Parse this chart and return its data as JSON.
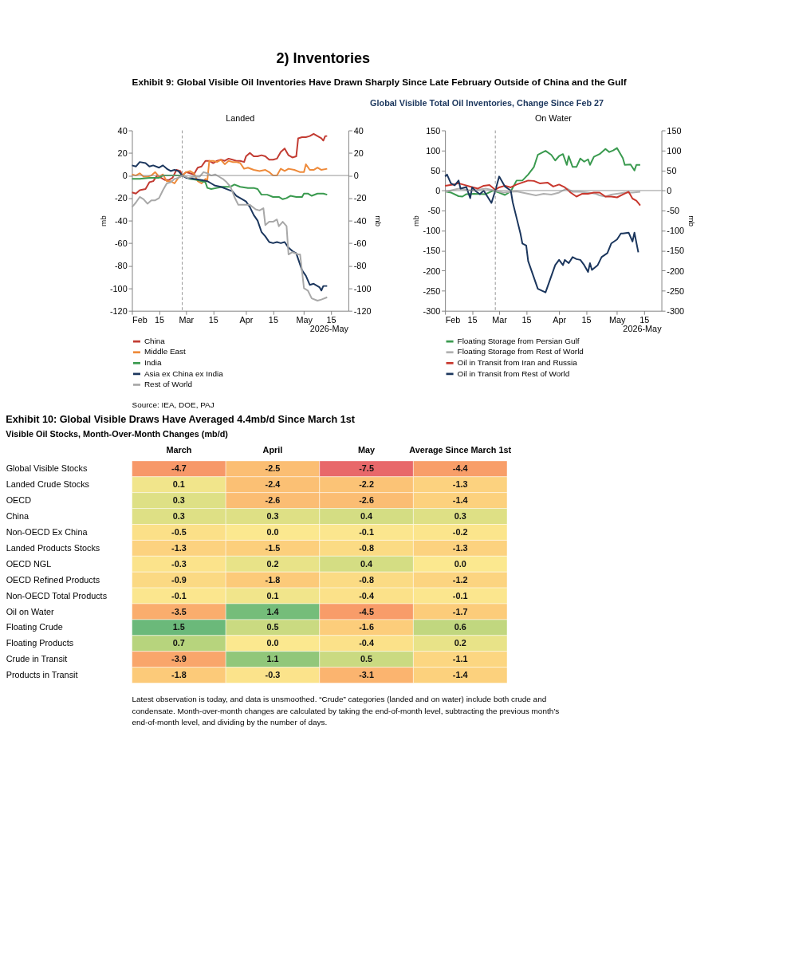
{
  "chart_data": [
    {
      "type": "line",
      "title": "Landed",
      "ylabel": "mb",
      "y2label": "mb",
      "annotations": [
        "2026-May",
        "2) Inventories",
        "Exhibit 9: Global Visible Oil Inventories Have Drawn Sharply Since Late February Outside of China and the Gulf",
        "Global Visible Total Oil Inventories, Change Since Feb 27"
      ],
      "xlim": [
        "2026-02-01",
        "2026-05-24"
      ],
      "xticks": [
        {
          "value": "2026-02-01",
          "label": "Feb"
        },
        {
          "value": "2026-02-15",
          "label": "15"
        },
        {
          "value": "2026-03-01",
          "label": "Mar"
        },
        {
          "value": "2026-03-15",
          "label": "15"
        },
        {
          "value": "2026-04-01",
          "label": "Apr"
        },
        {
          "value": "2026-04-15",
          "label": "15"
        },
        {
          "value": "2026-05-01",
          "label": "May"
        },
        {
          "value": "2026-05-15",
          "label": "15"
        }
      ],
      "ylim": [
        -120,
        40
      ],
      "yticks": [
        -120,
        -100,
        -80,
        -60,
        -40,
        -20,
        0,
        20,
        40
      ],
      "y2lim": [
        -120,
        40
      ],
      "y2ticks": [
        -120,
        -100,
        -80,
        -60,
        -40,
        -20,
        0,
        20,
        40
      ],
      "grid": false,
      "legend": "bottom",
      "line_style": "solid",
      "ref_lines": [
        {
          "axis": "y",
          "value": 0,
          "color": "#8c8c8c",
          "line_style": "solid"
        },
        {
          "axis": "x",
          "value": "2026-02-27",
          "color": "#8c8c8c",
          "line_style": "dashed"
        }
      ],
      "series": [
        {
          "name": "China",
          "color": "#c23b32",
          "x": [
            "2026-02-01",
            "2026-02-03",
            "2026-02-05",
            "2026-02-08",
            "2026-02-10",
            "2026-02-12",
            "2026-02-14",
            "2026-02-16",
            "2026-02-18",
            "2026-02-20",
            "2026-02-22",
            "2026-02-24",
            "2026-02-26",
            "2026-02-27",
            "2026-03-01",
            "2026-03-03",
            "2026-03-05",
            "2026-03-07",
            "2026-03-09",
            "2026-03-11",
            "2026-03-13",
            "2026-03-15",
            "2026-03-17",
            "2026-03-19",
            "2026-03-21",
            "2026-03-23",
            "2026-03-25",
            "2026-03-27",
            "2026-03-29",
            "2026-03-31",
            "2026-04-01",
            "2026-04-03",
            "2026-04-05",
            "2026-04-07",
            "2026-04-09",
            "2026-04-11",
            "2026-04-13",
            "2026-04-15",
            "2026-04-17",
            "2026-04-19",
            "2026-04-21",
            "2026-04-23",
            "2026-04-25",
            "2026-04-27",
            "2026-04-28",
            "2026-04-30",
            "2026-05-02",
            "2026-05-04",
            "2026-05-06",
            "2026-05-08",
            "2026-05-10",
            "2026-05-11",
            "2026-05-12",
            "2026-05-13"
          ],
          "values": [
            -15,
            -16,
            -13,
            -12,
            -6,
            -5,
            0,
            -2,
            -4,
            -4,
            -2,
            5,
            4,
            0,
            3,
            2,
            1,
            7,
            8,
            13,
            13,
            11,
            13,
            14,
            13,
            15,
            14,
            13,
            13,
            12,
            17,
            20,
            17,
            17,
            18,
            17,
            14,
            14,
            15,
            21,
            24,
            18,
            16,
            17,
            33,
            34,
            34,
            35,
            37,
            35,
            33,
            31,
            35,
            35
          ]
        },
        {
          "name": "Middle East",
          "color": "#ee8a3a",
          "x": [
            "2026-02-01",
            "2026-02-03",
            "2026-02-05",
            "2026-02-07",
            "2026-02-09",
            "2026-02-11",
            "2026-02-13",
            "2026-02-15",
            "2026-02-17",
            "2026-02-19",
            "2026-02-21",
            "2026-02-23",
            "2026-02-25",
            "2026-02-27",
            "2026-03-01",
            "2026-03-03",
            "2026-03-05",
            "2026-03-07",
            "2026-03-09",
            "2026-03-11",
            "2026-03-12",
            "2026-03-13",
            "2026-03-15",
            "2026-03-17",
            "2026-03-19",
            "2026-03-21",
            "2026-03-23",
            "2026-03-25",
            "2026-03-27",
            "2026-03-29",
            "2026-03-31",
            "2026-04-02",
            "2026-04-05",
            "2026-04-08",
            "2026-04-11",
            "2026-04-13",
            "2026-04-15",
            "2026-04-17",
            "2026-04-19",
            "2026-04-21",
            "2026-04-23",
            "2026-04-26",
            "2026-04-29",
            "2026-05-01",
            "2026-05-02",
            "2026-05-04",
            "2026-05-06",
            "2026-05-08",
            "2026-05-10",
            "2026-05-13"
          ],
          "values": [
            1,
            0,
            2,
            -1,
            -1,
            0,
            3,
            -1,
            1,
            -5,
            -5,
            -7,
            -2,
            0,
            3,
            4,
            2,
            -5,
            -7,
            -3,
            -4,
            13,
            13,
            12,
            14,
            10,
            13,
            12,
            12,
            11,
            6,
            7,
            5,
            4,
            5,
            3,
            0,
            0,
            6,
            4,
            6,
            5,
            3,
            3,
            10,
            5,
            5,
            7,
            5,
            6
          ]
        },
        {
          "name": "India",
          "color": "#3a9a4f",
          "x": [
            "2026-02-01",
            "2026-02-05",
            "2026-02-10",
            "2026-02-15",
            "2026-02-17",
            "2026-02-22",
            "2026-02-27",
            "2026-03-03",
            "2026-03-07",
            "2026-03-11",
            "2026-03-12",
            "2026-03-14",
            "2026-03-17",
            "2026-03-20",
            "2026-03-24",
            "2026-03-26",
            "2026-03-29",
            "2026-04-02",
            "2026-04-05",
            "2026-04-07",
            "2026-04-09",
            "2026-04-12",
            "2026-04-15",
            "2026-04-18",
            "2026-04-20",
            "2026-04-22",
            "2026-04-24",
            "2026-04-27",
            "2026-04-30",
            "2026-05-01",
            "2026-05-03",
            "2026-05-05",
            "2026-05-08",
            "2026-05-11",
            "2026-05-13"
          ],
          "values": [
            -3,
            -3,
            -2,
            -2,
            0,
            0,
            0,
            -3,
            -4,
            -6,
            -11,
            -12,
            -11,
            -10,
            -10,
            -8,
            -10,
            -11,
            -11,
            -12,
            -17,
            -17,
            -19,
            -19,
            -21,
            -20,
            -18,
            -19,
            -19,
            -16,
            -16,
            -18,
            -16,
            -16,
            -17
          ]
        },
        {
          "name": "Asia ex China ex India",
          "color": "#1b365d",
          "x": [
            "2026-02-01",
            "2026-02-03",
            "2026-02-05",
            "2026-02-08",
            "2026-02-10",
            "2026-02-12",
            "2026-02-15",
            "2026-02-17",
            "2026-02-19",
            "2026-02-21",
            "2026-02-23",
            "2026-02-25",
            "2026-02-27",
            "2026-03-01",
            "2026-03-05",
            "2026-03-09",
            "2026-03-12",
            "2026-03-14",
            "2026-03-16",
            "2026-03-19",
            "2026-03-22",
            "2026-03-25",
            "2026-03-27",
            "2026-03-29",
            "2026-04-01",
            "2026-04-03",
            "2026-04-05",
            "2026-04-07",
            "2026-04-09",
            "2026-04-11",
            "2026-04-13",
            "2026-04-15",
            "2026-04-17",
            "2026-04-19",
            "2026-04-21",
            "2026-04-23",
            "2026-04-25",
            "2026-04-27",
            "2026-04-30",
            "2026-05-02",
            "2026-05-04",
            "2026-05-06",
            "2026-05-09",
            "2026-05-10",
            "2026-05-11",
            "2026-05-13"
          ],
          "values": [
            9,
            8,
            12,
            11,
            8,
            9,
            7,
            9,
            6,
            4,
            5,
            4,
            0,
            -2,
            -3,
            -4,
            -5,
            -7,
            -9,
            -10,
            -12,
            -14,
            -18,
            -20,
            -23,
            -28,
            -35,
            -40,
            -50,
            -54,
            -59,
            -60,
            -59,
            -60,
            -59,
            -64,
            -67,
            -69,
            -84,
            -89,
            -97,
            -96,
            -99,
            -102,
            -98,
            -98
          ]
        },
        {
          "name": "Rest of World",
          "color": "#a8a8a8",
          "x": [
            "2026-02-01",
            "2026-02-03",
            "2026-02-05",
            "2026-02-07",
            "2026-02-09",
            "2026-02-11",
            "2026-02-13",
            "2026-02-15",
            "2026-02-17",
            "2026-02-19",
            "2026-02-21",
            "2026-02-23",
            "2026-02-25",
            "2026-02-27",
            "2026-03-02",
            "2026-03-05",
            "2026-03-08",
            "2026-03-10",
            "2026-03-12",
            "2026-03-14",
            "2026-03-16",
            "2026-03-18",
            "2026-03-20",
            "2026-03-22",
            "2026-03-24",
            "2026-03-26",
            "2026-03-28",
            "2026-03-31",
            "2026-04-03",
            "2026-04-06",
            "2026-04-08",
            "2026-04-10",
            "2026-04-11",
            "2026-04-13",
            "2026-04-15",
            "2026-04-17",
            "2026-04-18",
            "2026-04-20",
            "2026-04-22",
            "2026-04-23",
            "2026-04-25",
            "2026-04-28",
            "2026-04-29",
            "2026-05-01",
            "2026-05-03",
            "2026-05-05",
            "2026-05-08",
            "2026-05-10",
            "2026-05-13"
          ],
          "values": [
            -28,
            -24,
            -19,
            -21,
            -25,
            -22,
            -22,
            -20,
            -13,
            -7,
            -6,
            -3,
            -2,
            0,
            -2,
            -1,
            -1,
            3,
            2,
            0,
            1,
            -1,
            -3,
            -6,
            -10,
            -19,
            -26,
            -26,
            -26,
            -30,
            -31,
            -29,
            -44,
            -41,
            -41,
            -39,
            -45,
            -41,
            -45,
            -70,
            -68,
            -70,
            -70,
            -100,
            -102,
            -109,
            -111,
            -110,
            -108
          ]
        }
      ]
    },
    {
      "type": "line",
      "title": "On Water",
      "ylabel": "mb",
      "y2label": "mb",
      "annotations": [
        "2026-May",
        "Source: IEA, DOE, PAJ"
      ],
      "xlim": [
        "2026-02-01",
        "2026-05-24"
      ],
      "xticks": [
        {
          "value": "2026-02-01",
          "label": "Feb"
        },
        {
          "value": "2026-02-15",
          "label": "15"
        },
        {
          "value": "2026-03-01",
          "label": "Mar"
        },
        {
          "value": "2026-03-15",
          "label": "15"
        },
        {
          "value": "2026-04-01",
          "label": "Apr"
        },
        {
          "value": "2026-04-15",
          "label": "15"
        },
        {
          "value": "2026-05-01",
          "label": "May"
        },
        {
          "value": "2026-05-15",
          "label": "15"
        }
      ],
      "ylim": [
        -300,
        150
      ],
      "yticks": [
        -300,
        -250,
        -200,
        -150,
        -100,
        -50,
        0,
        50,
        100,
        150
      ],
      "y2lim": [
        -300,
        150
      ],
      "y2ticks": [
        -300,
        -250,
        -200,
        -150,
        -100,
        -50,
        0,
        50,
        100,
        150
      ],
      "grid": false,
      "legend": "bottom",
      "line_style": "solid",
      "ref_lines": [
        {
          "axis": "y",
          "value": 0,
          "color": "#8c8c8c",
          "line_style": "solid"
        },
        {
          "axis": "x",
          "value": "2026-02-27",
          "color": "#8c8c8c",
          "line_style": "dashed"
        }
      ],
      "series": [
        {
          "name": "Floating Storage from Persian Gulf",
          "color": "#3a9a4f",
          "x": [
            "2026-02-01",
            "2026-02-04",
            "2026-02-08",
            "2026-02-10",
            "2026-02-12",
            "2026-02-16",
            "2026-02-22",
            "2026-02-26",
            "2026-03-01",
            "2026-03-04",
            "2026-03-07",
            "2026-03-10",
            "2026-03-13",
            "2026-03-16",
            "2026-03-19",
            "2026-03-21",
            "2026-03-25",
            "2026-03-28",
            "2026-03-30",
            "2026-04-01",
            "2026-04-03",
            "2026-04-05",
            "2026-04-06",
            "2026-04-08",
            "2026-04-10",
            "2026-04-12",
            "2026-04-14",
            "2026-04-16",
            "2026-04-17",
            "2026-04-19",
            "2026-04-22",
            "2026-04-25",
            "2026-04-27",
            "2026-04-29",
            "2026-05-01",
            "2026-05-04",
            "2026-05-05",
            "2026-05-08",
            "2026-05-10",
            "2026-05-11",
            "2026-05-13"
          ],
          "values": [
            -2,
            -5,
            -14,
            -15,
            -9,
            -8,
            -9,
            0,
            -5,
            -11,
            -2,
            25,
            25,
            40,
            59,
            89,
            99,
            89,
            75,
            86,
            91,
            64,
            86,
            59,
            59,
            80,
            72,
            78,
            64,
            84,
            91,
            104,
            96,
            100,
            106,
            81,
            64,
            65,
            50,
            64,
            64
          ]
        },
        {
          "name": "Floating Storage from Rest of World",
          "color": "#b0b0b0",
          "x": [
            "2026-02-01",
            "2026-02-08",
            "2026-02-15",
            "2026-02-22",
            "2026-02-27",
            "2026-03-03",
            "2026-03-10",
            "2026-03-13",
            "2026-03-16",
            "2026-03-20",
            "2026-03-24",
            "2026-03-28",
            "2026-04-01",
            "2026-04-05",
            "2026-04-08",
            "2026-04-12",
            "2026-04-16",
            "2026-04-20",
            "2026-04-22",
            "2026-04-25",
            "2026-04-28",
            "2026-05-01",
            "2026-05-05",
            "2026-05-09",
            "2026-05-13"
          ],
          "values": [
            -3,
            5,
            0,
            5,
            0,
            -5,
            -2,
            -5,
            -8,
            -12,
            -8,
            -10,
            -5,
            5,
            -3,
            -3,
            -5,
            -8,
            -12,
            -15,
            -10,
            -8,
            -5,
            -5,
            -3
          ]
        },
        {
          "name": "Oil in Transit from Iran and Russia",
          "color": "#c8372d",
          "x": [
            "2026-02-01",
            "2026-02-05",
            "2026-02-08",
            "2026-02-11",
            "2026-02-14",
            "2026-02-18",
            "2026-02-21",
            "2026-02-24",
            "2026-02-27",
            "2026-03-01",
            "2026-03-04",
            "2026-03-07",
            "2026-03-10",
            "2026-03-13",
            "2026-03-16",
            "2026-03-19",
            "2026-03-22",
            "2026-03-26",
            "2026-03-29",
            "2026-04-01",
            "2026-04-04",
            "2026-04-07",
            "2026-04-10",
            "2026-04-13",
            "2026-04-16",
            "2026-04-19",
            "2026-04-22",
            "2026-04-25",
            "2026-04-28",
            "2026-05-01",
            "2026-05-04",
            "2026-05-07",
            "2026-05-09",
            "2026-05-11",
            "2026-05-13"
          ],
          "values": [
            12,
            15,
            18,
            14,
            10,
            5,
            12,
            14,
            2,
            8,
            12,
            8,
            15,
            20,
            25,
            24,
            18,
            20,
            10,
            15,
            8,
            -5,
            -15,
            -8,
            -8,
            -5,
            -5,
            -15,
            -15,
            -17,
            -10,
            -3,
            -20,
            -25,
            -37
          ]
        },
        {
          "name": "Oil in Transit from Rest of World",
          "color": "#1b365d",
          "x": [
            "2026-02-01",
            "2026-02-02",
            "2026-02-04",
            "2026-02-06",
            "2026-02-08",
            "2026-02-09",
            "2026-02-12",
            "2026-02-14",
            "2026-02-15",
            "2026-02-17",
            "2026-02-19",
            "2026-02-21",
            "2026-02-25",
            "2026-02-27",
            "2026-03-01",
            "2026-03-04",
            "2026-03-07",
            "2026-03-08",
            "2026-03-10",
            "2026-03-12",
            "2026-03-13",
            "2026-03-15",
            "2026-03-16",
            "2026-03-21",
            "2026-03-25",
            "2026-03-30",
            "2026-04-01",
            "2026-04-03",
            "2026-04-04",
            "2026-04-06",
            "2026-04-08",
            "2026-04-10",
            "2026-04-12",
            "2026-04-14",
            "2026-04-16",
            "2026-04-17",
            "2026-04-18",
            "2026-04-21",
            "2026-04-23",
            "2026-04-26",
            "2026-04-28",
            "2026-05-01",
            "2026-05-03",
            "2026-05-04",
            "2026-05-07",
            "2026-05-09",
            "2026-05-10",
            "2026-05-12"
          ],
          "values": [
            35,
            40,
            18,
            13,
            25,
            5,
            9,
            -19,
            8,
            -2,
            -9,
            0,
            -31,
            0,
            35,
            10,
            0,
            -29,
            -68,
            -107,
            -132,
            -137,
            -176,
            -245,
            -254,
            -186,
            -173,
            -186,
            -173,
            -181,
            -166,
            -171,
            -173,
            -186,
            -203,
            -181,
            -198,
            -186,
            -166,
            -156,
            -132,
            -122,
            -107,
            -107,
            -105,
            -127,
            -105,
            -154
          ]
        }
      ]
    },
    {
      "type": "heatmap",
      "title": "Exhibit 10: Global Visible Draws Have Averaged 4.4mb/d Since March 1st",
      "subtitle": "Visible Oil Stocks, Month-Over-Month Changes (mb/d)",
      "annotations": [
        "Latest observation is today, and data is unsmoothed. “Crude” categories (landed and on water) include both crude and condensate. Month-over-month changes are calculated by taking the end-of-month level, subtracting the previous month’s end-of-month level, and dividing by the number of days."
      ],
      "data_labels": true,
      "categories": [
        "March",
        "April",
        "May",
        "Average Since March 1st"
      ],
      "y_categories": [
        "Global Visible Stocks",
        "Landed Crude Stocks",
        "OECD",
        "China",
        "Non-OECD Ex China",
        "Landed Products Stocks",
        "OECD NGL",
        "OECD Refined Products",
        "Non-OECD Total Products",
        "Oil on Water",
        "Floating Crude",
        "Floating Products",
        "Crude in Transit",
        "Products in Transit"
      ],
      "cells": [
        [
          -4.7,
          -2.5,
          -7.5,
          -4.4
        ],
        [
          0.1,
          -2.4,
          -2.2,
          -1.3
        ],
        [
          0.3,
          -2.6,
          -2.6,
          -1.4
        ],
        [
          0.3,
          0.3,
          0.4,
          0.3
        ],
        [
          -0.5,
          0.0,
          -0.1,
          -0.2
        ],
        [
          -1.3,
          -1.5,
          -0.8,
          -1.3
        ],
        [
          -0.3,
          0.2,
          0.4,
          0.0
        ],
        [
          -0.9,
          -1.8,
          -0.8,
          -1.2
        ],
        [
          -0.1,
          0.1,
          -0.4,
          -0.1
        ],
        [
          -3.5,
          1.4,
          -4.5,
          -1.7
        ],
        [
          1.5,
          0.5,
          -1.6,
          0.6
        ],
        [
          0.7,
          0.0,
          -0.4,
          0.2
        ],
        [
          -3.9,
          1.1,
          0.5,
          -1.1
        ],
        [
          -1.8,
          -0.3,
          -3.1,
          -1.4
        ]
      ],
      "cell_labels": [
        [
          "-4.7",
          "-2.5",
          "-7.5",
          "-4.4"
        ],
        [
          "0.1",
          "-2.4",
          "-2.2",
          "-1.3"
        ],
        [
          "0.3",
          "-2.6",
          "-2.6",
          "-1.4"
        ],
        [
          "0.3",
          "0.3",
          "0.4",
          "0.3"
        ],
        [
          "-0.5",
          "0.0",
          "-0.1",
          "-0.2"
        ],
        [
          "-1.3",
          "-1.5",
          "-0.8",
          "-1.3"
        ],
        [
          "-0.3",
          "0.2",
          "0.4",
          "0.0"
        ],
        [
          "-0.9",
          "-1.8",
          "-0.8",
          "-1.2"
        ],
        [
          "-0.1",
          "0.1",
          "-0.4",
          "-0.1"
        ],
        [
          "-3.5",
          "1.4",
          "-4.5",
          "-1.7"
        ],
        [
          "1.5",
          "0.5",
          "-1.6",
          "0.6"
        ],
        [
          "0.7",
          "0.0",
          "-0.4",
          "0.2"
        ],
        [
          "-3.9",
          "1.1",
          "0.5",
          "-1.1"
        ],
        [
          "-1.8",
          "-0.3",
          "-3.1",
          "-1.4"
        ]
      ]
    }
  ]
}
